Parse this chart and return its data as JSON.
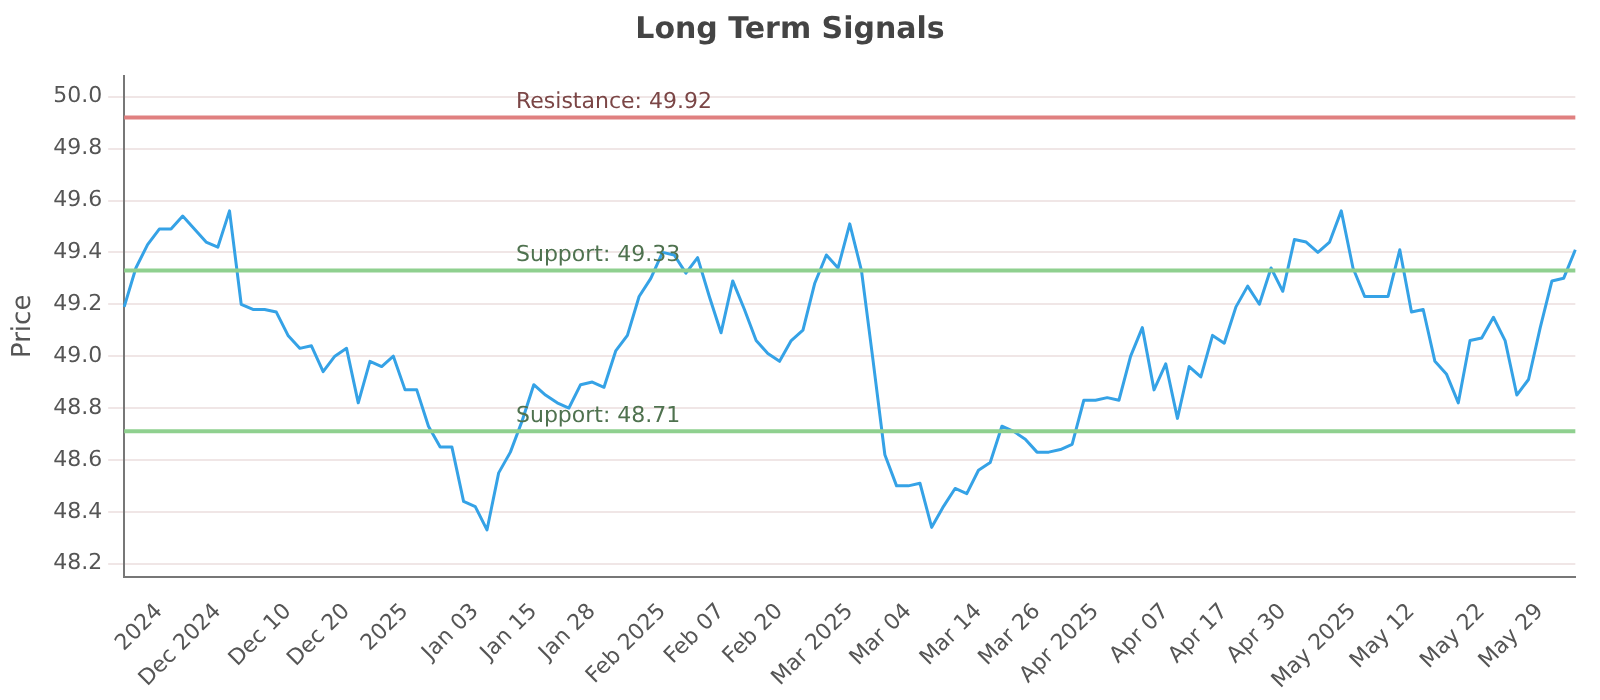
{
  "chart_data": {
    "type": "line",
    "title": "Long Term Signals",
    "ylabel": "Price",
    "categories": [
      null,
      null,
      null,
      "2024",
      null,
      null,
      null,
      null,
      "Dec 2024",
      null,
      null,
      null,
      null,
      null,
      "Dec 10",
      null,
      null,
      null,
      null,
      "Dec 20",
      null,
      null,
      null,
      null,
      "2025",
      null,
      null,
      null,
      null,
      null,
      "Jan 03",
      null,
      null,
      null,
      null,
      "Jan 15",
      null,
      null,
      null,
      null,
      "Jan 28",
      null,
      null,
      null,
      null,
      null,
      "Feb 2025",
      null,
      null,
      null,
      null,
      "Feb 07",
      null,
      null,
      null,
      null,
      "Feb 20",
      null,
      null,
      null,
      null,
      null,
      "Mar 2025",
      null,
      null,
      null,
      null,
      "Mar 04",
      null,
      null,
      null,
      null,
      null,
      "Mar 14",
      null,
      null,
      null,
      null,
      "Mar 26",
      null,
      null,
      null,
      null,
      "Apr 2025",
      null,
      null,
      null,
      null,
      null,
      "Apr 07",
      null,
      null,
      null,
      null,
      "Apr 17",
      null,
      null,
      null,
      null,
      "Apr 30",
      null,
      null,
      null,
      null,
      null,
      "May 2025",
      null,
      null,
      null,
      null,
      "May 12",
      null,
      null,
      null,
      null,
      null,
      "May 22",
      null,
      null,
      null,
      null,
      "May 29",
      null,
      null,
      null
    ],
    "series": [
      {
        "color": "#35a2e6",
        "values": [
          49.19,
          49.34,
          49.43,
          49.49,
          49.49,
          49.54,
          49.49,
          49.44,
          49.42,
          49.56,
          49.2,
          49.18,
          49.18,
          49.17,
          49.08,
          49.03,
          49.04,
          48.94,
          49.0,
          49.03,
          48.82,
          48.98,
          48.96,
          49.0,
          48.87,
          48.87,
          48.73,
          48.65,
          48.65,
          48.44,
          48.42,
          48.33,
          48.55,
          48.63,
          48.75,
          48.89,
          48.85,
          48.82,
          48.8,
          48.89,
          48.9,
          48.88,
          49.02,
          49.08,
          49.23,
          49.3,
          49.4,
          49.39,
          49.32,
          49.38,
          49.23,
          49.09,
          49.29,
          49.18,
          49.06,
          49.01,
          48.98,
          49.06,
          49.1,
          49.28,
          49.39,
          49.34,
          49.51,
          49.33,
          48.98,
          48.62,
          48.5,
          48.5,
          48.51,
          48.34,
          48.42,
          48.49,
          48.47,
          48.56,
          48.59,
          48.73,
          48.71,
          48.68,
          48.63,
          48.63,
          48.64,
          48.66,
          48.83,
          48.83,
          48.84,
          48.83,
          49.0,
          49.11,
          48.87,
          48.97,
          48.76,
          48.96,
          48.92,
          49.08,
          49.05,
          49.19,
          49.27,
          49.2,
          49.34,
          49.25,
          49.45,
          49.44,
          49.4,
          49.44,
          49.56,
          49.34,
          49.23,
          49.23,
          49.23,
          49.41,
          49.17,
          49.18,
          48.98,
          48.93,
          48.82,
          49.06,
          49.07,
          49.15,
          49.06,
          48.85,
          48.91,
          49.11,
          49.29,
          49.3,
          49.41
        ]
      }
    ],
    "ylim": [
      48.15,
      50.08
    ],
    "yticks": [
      48.2,
      48.4,
      48.6,
      48.8,
      {
        "value": 49,
        "label": "49.0"
      },
      49.2,
      49.4,
      49.6,
      49.8,
      {
        "value": 50,
        "label": "50.0"
      }
    ],
    "ref_lines": [
      {
        "axis": "y",
        "value": 49.92,
        "label": "Resistance: 49.92",
        "color": "#e08080"
      },
      {
        "axis": "y",
        "value": 49.33,
        "label": "Support: 49.33",
        "color": "#8fd08f"
      },
      {
        "axis": "y",
        "value": 48.71,
        "label": "Support: 48.71",
        "color": "#8fd08f"
      }
    ],
    "grid": "y",
    "legend": false,
    "marker": "none",
    "line_style": "solid"
  }
}
